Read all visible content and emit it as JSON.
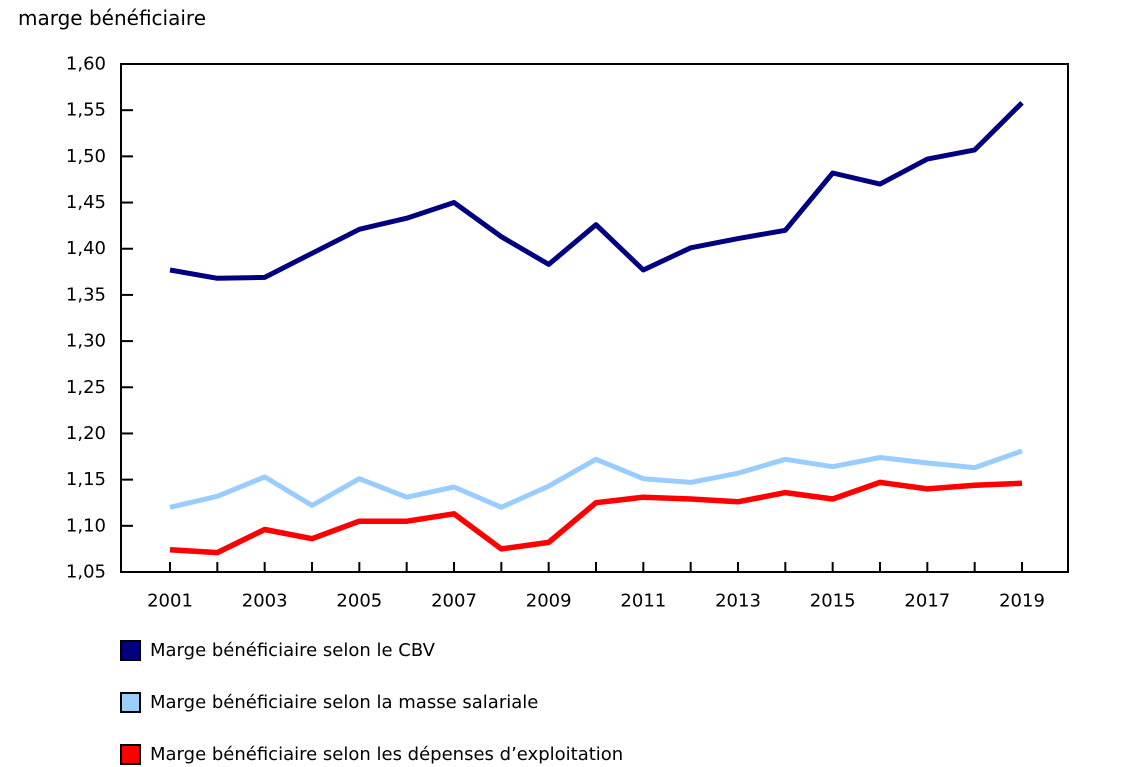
{
  "title": "marge bénéficiaire",
  "colors": {
    "axis": "#000000",
    "text": "#000000",
    "background": "#ffffff"
  },
  "chart_data": {
    "type": "line",
    "title": "marge bénéficiaire",
    "xlabel": "",
    "ylabel": "",
    "grid": false,
    "legend_position": "bottom-left",
    "ylim": [
      1.05,
      1.6
    ],
    "x": [
      2001,
      2002,
      2003,
      2004,
      2005,
      2006,
      2007,
      2008,
      2009,
      2010,
      2011,
      2012,
      2013,
      2014,
      2015,
      2016,
      2017,
      2018,
      2019
    ],
    "x_axis_labels": [
      "2001",
      "2003",
      "2005",
      "2007",
      "2009",
      "2011",
      "2013",
      "2015",
      "2017",
      "2019"
    ],
    "y_axis_labels": [
      {
        "label": "1,60",
        "value": 1.6
      },
      {
        "label": "1,55",
        "value": 1.55
      },
      {
        "label": "1,50",
        "value": 1.5
      },
      {
        "label": "1,45",
        "value": 1.45
      },
      {
        "label": "1,40",
        "value": 1.4
      },
      {
        "label": "1,35",
        "value": 1.35
      },
      {
        "label": "1,30",
        "value": 1.3
      },
      {
        "label": "1,25",
        "value": 1.25
      },
      {
        "label": "1,20",
        "value": 1.2
      },
      {
        "label": "1,15",
        "value": 1.15
      },
      {
        "label": "1,10",
        "value": 1.1
      },
      {
        "label": "1,05",
        "value": 1.05
      }
    ],
    "series": [
      {
        "name": "Marge bénéficiaire selon le CBV",
        "color": "#000080",
        "stroke_width": 5,
        "values": [
          1.377,
          1.368,
          1.369,
          1.395,
          1.421,
          1.433,
          1.45,
          1.413,
          1.383,
          1.426,
          1.377,
          1.401,
          1.411,
          1.42,
          1.482,
          1.47,
          1.497,
          1.507,
          1.558
        ]
      },
      {
        "name": "Marge bénéficiaire selon la masse salariale",
        "color": "#99ccff",
        "stroke_width": 5,
        "values": [
          1.12,
          1.132,
          1.153,
          1.122,
          1.151,
          1.131,
          1.142,
          1.12,
          1.143,
          1.172,
          1.151,
          1.147,
          1.157,
          1.172,
          1.164,
          1.174,
          1.168,
          1.163,
          1.181
        ]
      },
      {
        "name": "Marge bénéficiaire selon les dépenses d’exploitation",
        "color": "#ff0000",
        "stroke_width": 5.5,
        "values": [
          1.074,
          1.071,
          1.096,
          1.086,
          1.105,
          1.105,
          1.113,
          1.075,
          1.082,
          1.125,
          1.131,
          1.129,
          1.126,
          1.136,
          1.129,
          1.147,
          1.14,
          1.144,
          1.146
        ]
      }
    ]
  }
}
